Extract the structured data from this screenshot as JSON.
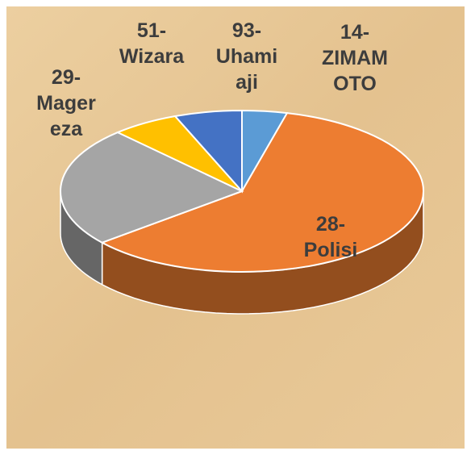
{
  "chart_data": {
    "type": "pie3d",
    "categories": [
      "14- ZIMAM OTO",
      "28- Polisi",
      "29- Mager eza",
      "51- Wizara",
      "93- Uhami aji"
    ],
    "values": [
      4,
      60,
      24,
      6,
      6
    ],
    "colors": [
      "#5b9bd5",
      "#ed7d31",
      "#a5a5a5",
      "#ffc000",
      "#4472c4"
    ]
  }
}
